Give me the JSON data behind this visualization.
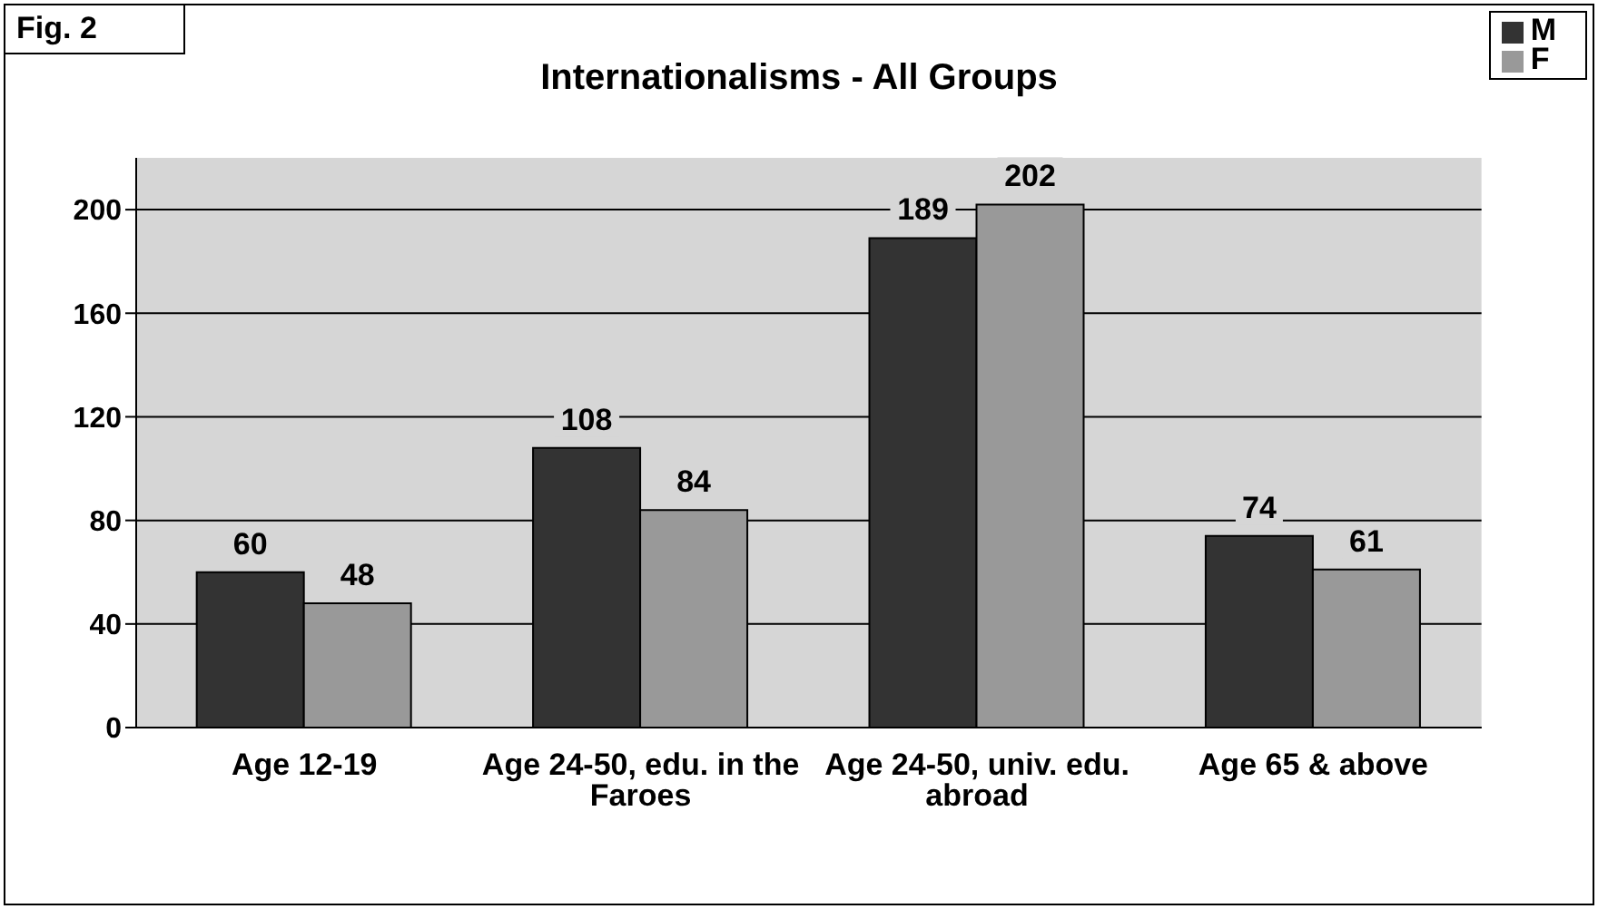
{
  "chart_data": {
    "type": "bar",
    "title": "Internationalisms - All Groups",
    "annotations": [
      "Fig. 2"
    ],
    "categories": [
      "Age 12-19",
      "Age 24-50, edu. in the Faroes",
      "Age 24-50, univ. edu. abroad",
      "Age 65 & above"
    ],
    "series": [
      {
        "name": "M",
        "color": "#333333",
        "values": [
          60,
          108,
          189,
          74
        ]
      },
      {
        "name": "F",
        "color": "#999999",
        "values": [
          48,
          84,
          202,
          61
        ]
      }
    ],
    "ylim": [
      0,
      220
    ],
    "yticks": [
      0,
      40,
      80,
      120,
      160,
      200
    ],
    "grid": "y",
    "legend": "top right",
    "data_labels": true
  }
}
